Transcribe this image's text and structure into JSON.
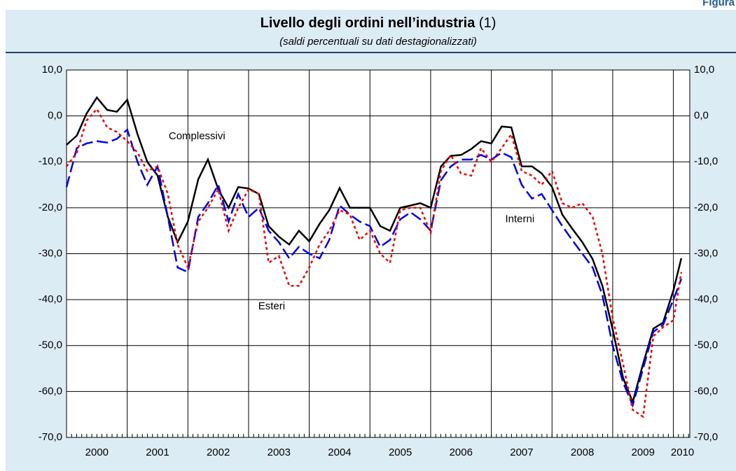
{
  "corner_label": "Figura",
  "chart_data": {
    "type": "line",
    "title": "Livello degli ordini nell’industria",
    "title_note": "(1)",
    "subtitle": "(saldi percentuali su dati destagionalizzati)",
    "x": [
      2000,
      2000.17,
      2000.33,
      2000.5,
      2000.67,
      2000.83,
      2001,
      2001.17,
      2001.33,
      2001.5,
      2001.67,
      2001.83,
      2002,
      2002.17,
      2002.33,
      2002.5,
      2002.67,
      2002.83,
      2003,
      2003.17,
      2003.33,
      2003.5,
      2003.67,
      2003.83,
      2004,
      2004.17,
      2004.33,
      2004.5,
      2004.67,
      2004.83,
      2005,
      2005.17,
      2005.33,
      2005.5,
      2005.67,
      2005.83,
      2006,
      2006.17,
      2006.33,
      2006.5,
      2006.67,
      2006.83,
      2007,
      2007.17,
      2007.33,
      2007.5,
      2007.67,
      2007.83,
      2008,
      2008.17,
      2008.33,
      2008.5,
      2008.67,
      2008.83,
      2009,
      2009.17,
      2009.33,
      2009.5,
      2009.67,
      2009.83,
      2010,
      2010.13
    ],
    "series": [
      {
        "name": "Complessivi",
        "color": "#000000",
        "dash": "solid",
        "values": [
          -6.3,
          -4.3,
          0.5,
          4,
          1.3,
          0.9,
          3.5,
          -4,
          -10,
          -13,
          -22,
          -27.5,
          -23,
          -13.8,
          -9.5,
          -16,
          -20,
          -15.5,
          -15.8,
          -17,
          -24,
          -26.3,
          -28,
          -25,
          -27.3,
          -23.5,
          -20.5,
          -15.7,
          -20,
          -20,
          -20,
          -24,
          -25,
          -20,
          -19.5,
          -19,
          -20,
          -11,
          -8.7,
          -8.5,
          -7.2,
          -5.5,
          -6,
          -2.3,
          -2.5,
          -11,
          -11,
          -12.5,
          -15.5,
          -21.5,
          -24.5,
          -27.5,
          -31.2,
          -37,
          -46.5,
          -57,
          -62.3,
          -54,
          -46.3,
          -45,
          -38,
          -31
        ]
      },
      {
        "name": "Interni",
        "color": "#0000ff",
        "dash": "dashed",
        "values": [
          -15.5,
          -7,
          -6,
          -5.5,
          -5.8,
          -5,
          -3,
          -10,
          -15,
          -11,
          -22,
          -33,
          -34,
          -22,
          -19,
          -15,
          -23,
          -17,
          -22,
          -20,
          -25,
          -27.5,
          -31,
          -28.5,
          -30,
          -31,
          -27,
          -19.5,
          -21.5,
          -23,
          -24,
          -28.5,
          -27,
          -22.5,
          -21,
          -22.5,
          -25,
          -14,
          -11,
          -9.5,
          -9.5,
          -8.5,
          -9.5,
          -8,
          -9,
          -15,
          -18,
          -17,
          -20.5,
          -24,
          -27,
          -30,
          -33,
          -39,
          -50,
          -58,
          -63,
          -55,
          -47,
          -45.5,
          -40,
          -35.5
        ]
      },
      {
        "name": "Esteri",
        "color": "#ff0000",
        "dash": "dotted",
        "values": [
          -11,
          -8,
          -1,
          1.5,
          -2.5,
          -3.5,
          -5.5,
          -8,
          -12,
          -11,
          -17,
          -28,
          -33,
          -23,
          -20,
          -16,
          -25,
          -20,
          -16,
          -17,
          -32,
          -30.5,
          -37,
          -37,
          -33,
          -28,
          -25,
          -20.5,
          -21.5,
          -27,
          -25,
          -30,
          -32,
          -20.5,
          -20,
          -20,
          -25.5,
          -12,
          -8.5,
          -12.5,
          -13,
          -7,
          -10,
          -7,
          -4,
          -12,
          -13,
          -15,
          -12,
          -19,
          -20,
          -19,
          -22,
          -30,
          -44,
          -54,
          -64,
          -65.5,
          -48,
          -46,
          -44.5,
          -34
        ]
      }
    ],
    "annotations": [
      {
        "text": "Complessivi",
        "x": 2002.15,
        "y": -4.5
      },
      {
        "text": "Interni",
        "x": 2007.47,
        "y": -22.5
      },
      {
        "text": "Esteri",
        "x": 2003.38,
        "y": -41.5
      }
    ],
    "xlim": [
      2000,
      2010.27
    ],
    "xgrid": [
      2001,
      2002,
      2003,
      2004,
      2005,
      2006,
      2007,
      2008,
      2009,
      2010
    ],
    "xticks": [
      {
        "value": 2000.5,
        "label": "2000"
      },
      {
        "value": 2001.5,
        "label": "2001"
      },
      {
        "value": 2002.5,
        "label": "2002"
      },
      {
        "value": 2003.5,
        "label": "2003"
      },
      {
        "value": 2004.5,
        "label": "2004"
      },
      {
        "value": 2005.5,
        "label": "2005"
      },
      {
        "value": 2006.5,
        "label": "2006"
      },
      {
        "value": 2007.5,
        "label": "2007"
      },
      {
        "value": 2008.5,
        "label": "2008"
      },
      {
        "value": 2009.5,
        "label": "2009"
      },
      {
        "value": 2010.15,
        "label": "2010"
      }
    ],
    "ylim": [
      -70,
      10
    ],
    "yticks": [
      {
        "value": -70,
        "label": "-70,0"
      },
      {
        "value": -60,
        "label": "-60,0"
      },
      {
        "value": -50,
        "label": "-50,0"
      },
      {
        "value": -40,
        "label": "-40,0"
      },
      {
        "value": -30,
        "label": "-30,0"
      },
      {
        "value": -20,
        "label": "-20,0"
      },
      {
        "value": -10,
        "label": "-10,0"
      },
      {
        "value": 0,
        "label": "0,0"
      },
      {
        "value": 10,
        "label": "10,0"
      }
    ],
    "grid": true
  }
}
